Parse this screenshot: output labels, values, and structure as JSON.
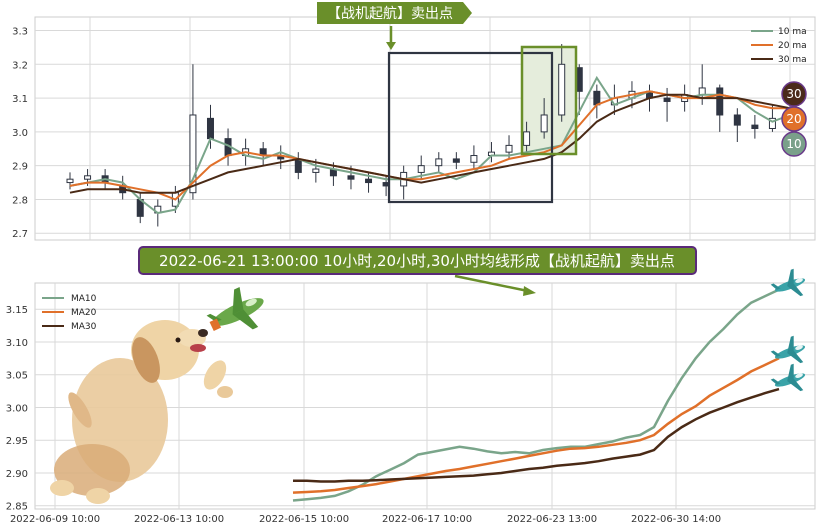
{
  "annotations": {
    "top_label": "【战机起航】卖出点",
    "banner": "2022-06-21 13:00:00 10小时,20小时,30小时均线形成【战机起航】卖出点"
  },
  "badges": [
    {
      "label": "30",
      "color": "#4a2a1a"
    },
    {
      "label": "20",
      "color": "#e0702a"
    },
    {
      "label": "10",
      "color": "#7aa08a"
    }
  ],
  "colors": {
    "ma10": "#7aa58a",
    "ma20": "#e0702a",
    "ma30": "#4a2a16",
    "candle": "#2f3542",
    "box_dark": "#2f3542",
    "box_green": "#6a8f2a",
    "box_green_fill": "#e5eddc",
    "banner_bg": "#6a8f2a",
    "banner_border": "#5a2a7a",
    "grid": "#d9d9d9"
  },
  "icons": [
    "dog-illustration-icon",
    "toy-airplane-icon",
    "airplane-icon"
  ],
  "chart_data": [
    {
      "type": "candlestick",
      "ylim": [
        2.68,
        3.34
      ],
      "yticks": [
        2.7,
        2.8,
        2.9,
        3.0,
        3.1,
        3.2,
        3.3
      ],
      "grid": true,
      "legend": {
        "position": "top-right",
        "entries": [
          "10 ma",
          "20 ma",
          "30 ma"
        ]
      },
      "series": [
        {
          "name": "10 ma",
          "values": [
            2.84,
            2.85,
            2.86,
            2.85,
            2.8,
            2.76,
            2.77,
            2.86,
            2.98,
            2.96,
            2.93,
            2.92,
            2.94,
            2.92,
            2.9,
            2.89,
            2.88,
            2.87,
            2.86,
            2.86,
            2.87,
            2.88,
            2.86,
            2.88,
            2.93,
            2.93,
            2.94,
            2.95,
            2.96,
            3.06,
            3.16,
            3.08,
            3.1,
            3.12,
            3.11,
            3.1,
            3.11,
            3.11,
            3.1,
            3.06,
            3.03,
            3.05
          ]
        },
        {
          "name": "20 ma",
          "values": [
            2.84,
            2.85,
            2.85,
            2.84,
            2.83,
            2.82,
            2.8,
            2.85,
            2.9,
            2.93,
            2.94,
            2.93,
            2.93,
            2.92,
            2.91,
            2.9,
            2.89,
            2.88,
            2.87,
            2.86,
            2.86,
            2.87,
            2.88,
            2.89,
            2.9,
            2.92,
            2.93,
            2.94,
            2.96,
            3.02,
            3.08,
            3.1,
            3.11,
            3.12,
            3.11,
            3.1,
            3.1,
            3.11,
            3.1,
            3.08,
            3.07,
            3.07
          ]
        },
        {
          "name": "30 ma",
          "values": [
            2.82,
            2.83,
            2.83,
            2.83,
            2.82,
            2.82,
            2.82,
            2.84,
            2.86,
            2.88,
            2.89,
            2.9,
            2.91,
            2.92,
            2.91,
            2.9,
            2.89,
            2.88,
            2.87,
            2.86,
            2.85,
            2.86,
            2.87,
            2.88,
            2.89,
            2.9,
            2.91,
            2.92,
            2.94,
            2.98,
            3.03,
            3.06,
            3.08,
            3.1,
            3.11,
            3.11,
            3.1,
            3.1,
            3.1,
            3.09,
            3.08,
            3.07
          ]
        }
      ],
      "candles": [
        [
          2.85,
          2.86,
          2.88,
          2.83
        ],
        [
          2.86,
          2.87,
          2.89,
          2.84
        ],
        [
          2.87,
          2.85,
          2.89,
          2.83
        ],
        [
          2.84,
          2.82,
          2.87,
          2.8
        ],
        [
          2.8,
          2.75,
          2.82,
          2.73
        ],
        [
          2.76,
          2.78,
          2.8,
          2.72
        ],
        [
          2.78,
          2.82,
          2.84,
          2.76
        ],
        [
          2.82,
          3.05,
          3.2,
          2.8
        ],
        [
          3.04,
          2.98,
          3.08,
          2.95
        ],
        [
          2.98,
          2.93,
          3.01,
          2.9
        ],
        [
          2.93,
          2.95,
          2.98,
          2.9
        ],
        [
          2.95,
          2.93,
          2.97,
          2.9
        ],
        [
          2.93,
          2.92,
          2.96,
          2.89
        ],
        [
          2.92,
          2.88,
          2.94,
          2.86
        ],
        [
          2.88,
          2.89,
          2.92,
          2.85
        ],
        [
          2.89,
          2.87,
          2.91,
          2.84
        ],
        [
          2.87,
          2.86,
          2.9,
          2.83
        ],
        [
          2.86,
          2.85,
          2.88,
          2.82
        ],
        [
          2.85,
          2.84,
          2.87,
          2.81
        ],
        [
          2.84,
          2.88,
          2.9,
          2.8
        ],
        [
          2.88,
          2.9,
          2.93,
          2.86
        ],
        [
          2.9,
          2.92,
          2.94,
          2.88
        ],
        [
          2.92,
          2.91,
          2.94,
          2.89
        ],
        [
          2.91,
          2.93,
          2.96,
          2.89
        ],
        [
          2.93,
          2.94,
          2.97,
          2.91
        ],
        [
          2.94,
          2.96,
          2.99,
          2.92
        ],
        [
          2.96,
          3.0,
          3.03,
          2.94
        ],
        [
          3.0,
          3.05,
          3.1,
          2.98
        ],
        [
          3.05,
          3.2,
          3.26,
          3.03
        ],
        [
          3.19,
          3.12,
          3.2,
          3.05
        ],
        [
          3.12,
          3.08,
          3.14,
          3.04
        ],
        [
          3.08,
          3.1,
          3.14,
          3.05
        ],
        [
          3.1,
          3.12,
          3.15,
          3.07
        ],
        [
          3.12,
          3.1,
          3.14,
          3.06
        ],
        [
          3.1,
          3.09,
          3.13,
          3.03
        ],
        [
          3.09,
          3.11,
          3.14,
          3.06
        ],
        [
          3.11,
          3.13,
          3.2,
          3.08
        ],
        [
          3.13,
          3.05,
          3.14,
          3.0
        ],
        [
          3.05,
          3.02,
          3.07,
          2.97
        ],
        [
          3.02,
          3.01,
          3.05,
          2.98
        ],
        [
          3.01,
          3.04,
          3.08,
          3.0
        ],
        [
          3.04,
          3.06,
          3.09,
          3.02
        ]
      ]
    },
    {
      "type": "line",
      "ylim": [
        2.845,
        3.19
      ],
      "yticks": [
        2.85,
        2.9,
        2.95,
        3.0,
        3.05,
        3.1,
        3.15
      ],
      "xticks": [
        "2022-06-09 10:00",
        "2022-06-13 10:00",
        "2022-06-15 10:00",
        "2022-06-17 10:00",
        "2022-06-23 13:00",
        "2022-06-30 14:00"
      ],
      "grid": true,
      "legend": {
        "position": "top-left",
        "entries": [
          "MA10",
          "MA20",
          "MA30"
        ]
      },
      "series": [
        {
          "name": "MA10",
          "values": [
            2.858,
            2.86,
            2.862,
            2.865,
            2.872,
            2.882,
            2.895,
            2.905,
            2.915,
            2.928,
            2.932,
            2.936,
            2.94,
            2.937,
            2.933,
            2.93,
            2.932,
            2.93,
            2.935,
            2.938,
            2.94,
            2.94,
            2.944,
            2.948,
            2.954,
            2.958,
            2.97,
            3.01,
            3.045,
            3.075,
            3.1,
            3.12,
            3.142,
            3.16,
            3.17,
            3.18
          ]
        },
        {
          "name": "MA20",
          "values": [
            2.87,
            2.871,
            2.872,
            2.874,
            2.877,
            2.88,
            2.883,
            2.887,
            2.891,
            2.895,
            2.899,
            2.903,
            2.906,
            2.91,
            2.914,
            2.918,
            2.922,
            2.926,
            2.93,
            2.934,
            2.937,
            2.938,
            2.94,
            2.943,
            2.946,
            2.95,
            2.958,
            2.975,
            2.99,
            3.002,
            3.018,
            3.03,
            3.042,
            3.055,
            3.065,
            3.075
          ]
        },
        {
          "name": "MA30",
          "values": [
            2.888,
            2.888,
            2.887,
            2.887,
            2.888,
            2.888,
            2.889,
            2.89,
            2.891,
            2.892,
            2.893,
            2.894,
            2.895,
            2.896,
            2.898,
            2.9,
            2.903,
            2.906,
            2.908,
            2.911,
            2.913,
            2.915,
            2.918,
            2.922,
            2.925,
            2.928,
            2.935,
            2.955,
            2.97,
            2.982,
            2.992,
            3.0,
            3.008,
            3.015,
            3.022,
            3.028
          ]
        }
      ]
    }
  ]
}
